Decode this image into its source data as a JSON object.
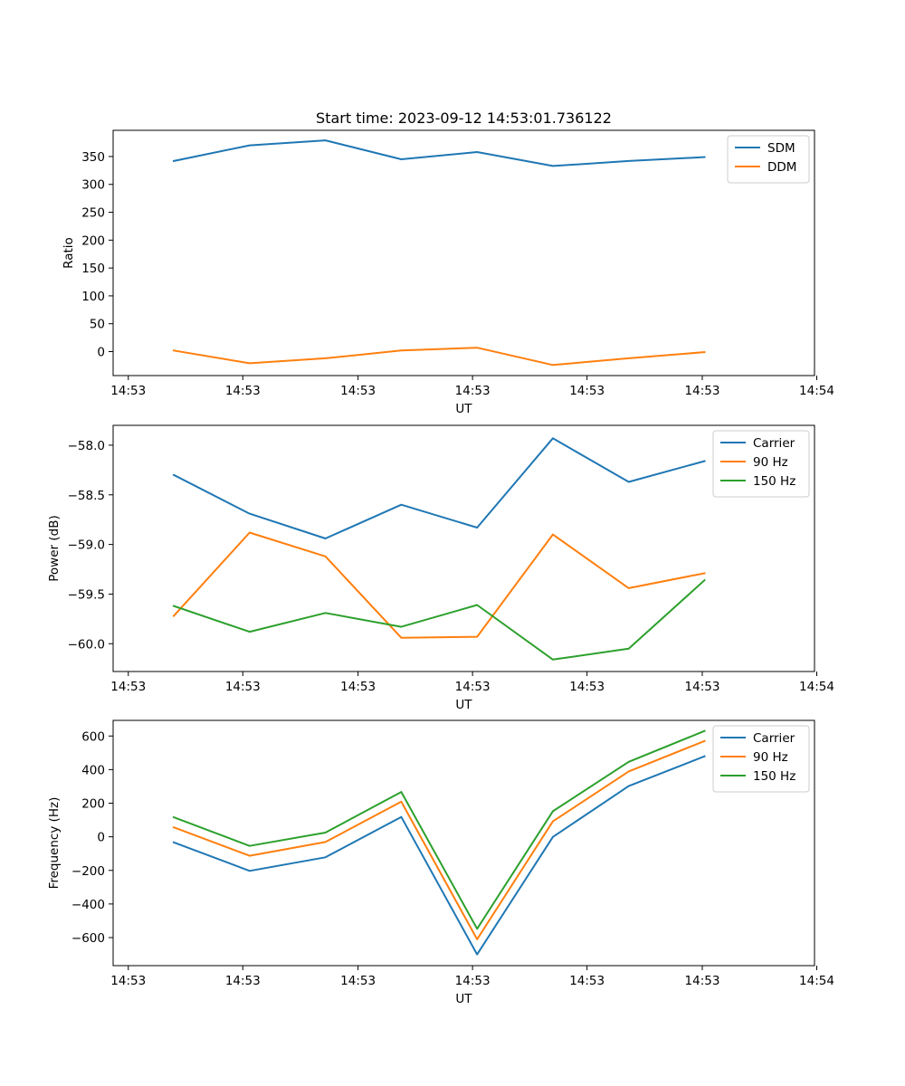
{
  "chart_data": [
    {
      "type": "line",
      "title": "Start time: 2023-09-12 14:53:01.736122",
      "xlabel": "UT",
      "ylabel": "Ratio",
      "x": [
        1,
        2,
        3,
        4,
        5,
        6,
        7,
        8
      ],
      "xlim": [
        0.2,
        9.45
      ],
      "x_ticks": [
        0.4,
        1.91,
        3.43,
        4.94,
        6.45,
        7.97,
        9.48
      ],
      "x_tick_labels": [
        "14:53",
        "14:53",
        "14:53",
        "14:53",
        "14:53",
        "14:53",
        "14:54"
      ],
      "ylim": [
        -43,
        397
      ],
      "y_ticks": [
        0,
        50,
        100,
        150,
        200,
        250,
        300,
        350
      ],
      "y_tick_labels": [
        "0",
        "50",
        "100",
        "150",
        "200",
        "250",
        "300",
        "350"
      ],
      "legend_position": "top-right",
      "series": [
        {
          "name": "SDM",
          "color": "#1f77b4",
          "values": [
            342,
            370,
            379,
            345,
            358,
            333,
            342,
            349
          ]
        },
        {
          "name": "DDM",
          "color": "#ff7f0e",
          "values": [
            2,
            -21,
            -12,
            2,
            7,
            -24,
            -12,
            -1
          ]
        }
      ]
    },
    {
      "type": "line",
      "title": "",
      "xlabel": "UT",
      "ylabel": "Power (dB)",
      "x": [
        1,
        2,
        3,
        4,
        5,
        6,
        7,
        8
      ],
      "xlim": [
        0.2,
        9.45
      ],
      "x_ticks": [
        0.4,
        1.91,
        3.43,
        4.94,
        6.45,
        7.97,
        9.48
      ],
      "x_tick_labels": [
        "14:53",
        "14:53",
        "14:53",
        "14:53",
        "14:53",
        "14:53",
        "14:54"
      ],
      "ylim": [
        -60.28,
        -57.8
      ],
      "y_ticks": [
        -60.0,
        -59.5,
        -59.0,
        -58.5,
        -58.0
      ],
      "y_tick_labels": [
        "−60.0",
        "−59.5",
        "−59.0",
        "−58.5",
        "−58.0"
      ],
      "legend_position": "top-right",
      "series": [
        {
          "name": "Carrier",
          "color": "#1f77b4",
          "values": [
            -58.3,
            -58.69,
            -58.94,
            -58.6,
            -58.83,
            -57.93,
            -58.37,
            -58.16
          ]
        },
        {
          "name": "90 Hz",
          "color": "#ff7f0e",
          "values": [
            -59.72,
            -58.88,
            -59.12,
            -59.94,
            -59.93,
            -58.9,
            -59.44,
            -59.29
          ]
        },
        {
          "name": "150 Hz",
          "color": "#2ca02c",
          "values": [
            -59.62,
            -59.88,
            -59.69,
            -59.83,
            -59.61,
            -60.16,
            -60.05,
            -59.36
          ]
        }
      ]
    },
    {
      "type": "line",
      "title": "",
      "xlabel": "UT",
      "ylabel": "Frequency (Hz)",
      "x": [
        1,
        2,
        3,
        4,
        5,
        6,
        7,
        8
      ],
      "xlim": [
        0.2,
        9.45
      ],
      "x_ticks": [
        0.4,
        1.91,
        3.43,
        4.94,
        6.45,
        7.97,
        9.48
      ],
      "x_tick_labels": [
        "14:53",
        "14:53",
        "14:53",
        "14:53",
        "14:53",
        "14:53",
        "14:54"
      ],
      "ylim": [
        -767,
        693
      ],
      "y_ticks": [
        -600,
        -400,
        -200,
        0,
        200,
        400,
        600
      ],
      "y_tick_labels": [
        "−600",
        "−400",
        "−200",
        "0",
        "200",
        "400",
        "600"
      ],
      "legend_position": "top-right",
      "series": [
        {
          "name": "Carrier",
          "color": "#1f77b4",
          "values": [
            -33,
            -203,
            -122,
            118,
            -700,
            -1,
            302,
            479
          ]
        },
        {
          "name": "90 Hz",
          "color": "#ff7f0e",
          "values": [
            56,
            -113,
            -31,
            209,
            -610,
            92,
            389,
            570
          ]
        },
        {
          "name": "150 Hz",
          "color": "#2ca02c",
          "values": [
            116,
            -54,
            25,
            267,
            -548,
            152,
            446,
            630
          ]
        }
      ]
    }
  ]
}
